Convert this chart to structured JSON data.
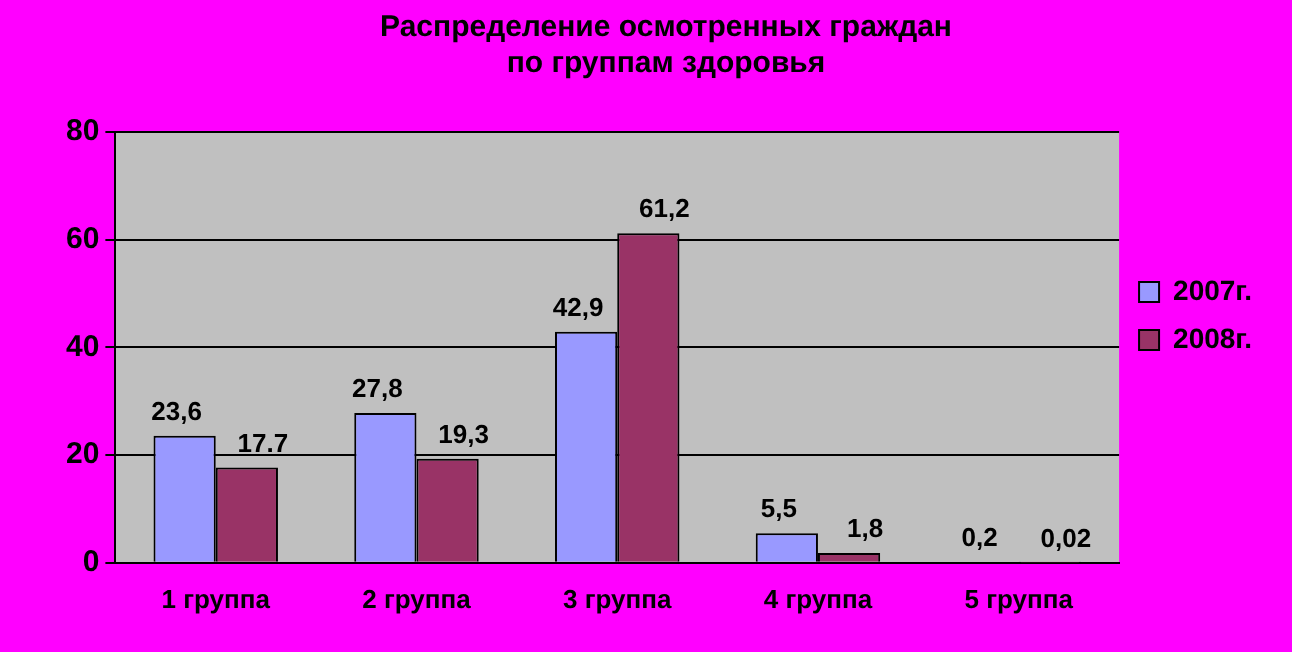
{
  "chart_data": {
    "type": "bar",
    "title": "Распределение осмотренных граждан\nпо группам здоровья",
    "categories": [
      "1 группа",
      "2 группа",
      "3 группа",
      "4 группа",
      "5 группа"
    ],
    "series": [
      {
        "name": "2007г.",
        "color": "#9999ff",
        "values": [
          23.6,
          27.8,
          42.9,
          5.5,
          0.2
        ],
        "value_labels": [
          "23,6",
          "27,8",
          "42,9",
          "5,5",
          "0,2"
        ]
      },
      {
        "name": "2008г.",
        "color": "#993366",
        "values": [
          17.7,
          19.3,
          61.2,
          1.8,
          0.02
        ],
        "value_labels": [
          "17.7",
          "19,3",
          "61,2",
          "1,8",
          "0,02"
        ]
      }
    ],
    "ylim": [
      0,
      80
    ],
    "yticks": [
      0,
      20,
      40,
      60,
      80
    ],
    "grid": "y",
    "legend": "right"
  }
}
